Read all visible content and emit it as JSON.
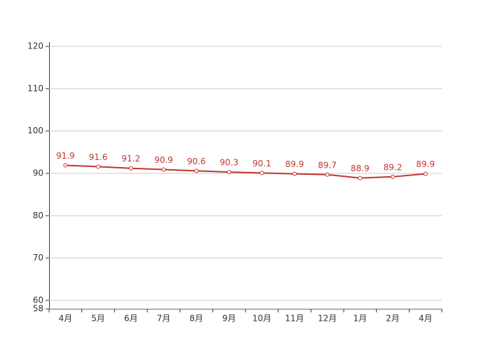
{
  "chart_data": {
    "type": "line",
    "categories": [
      "4月",
      "5月",
      "6月",
      "7月",
      "8月",
      "9月",
      "10月",
      "11月",
      "12月",
      "1月",
      "2月",
      "4月"
    ],
    "values": [
      91.9,
      91.6,
      91.2,
      90.9,
      90.6,
      90.3,
      90.1,
      89.9,
      89.7,
      88.9,
      89.2,
      89.9
    ],
    "color": "#c23531",
    "ylim": [
      58,
      121
    ],
    "yticks": [
      58,
      60,
      70,
      80,
      90,
      100,
      110,
      120
    ],
    "grid": true
  }
}
